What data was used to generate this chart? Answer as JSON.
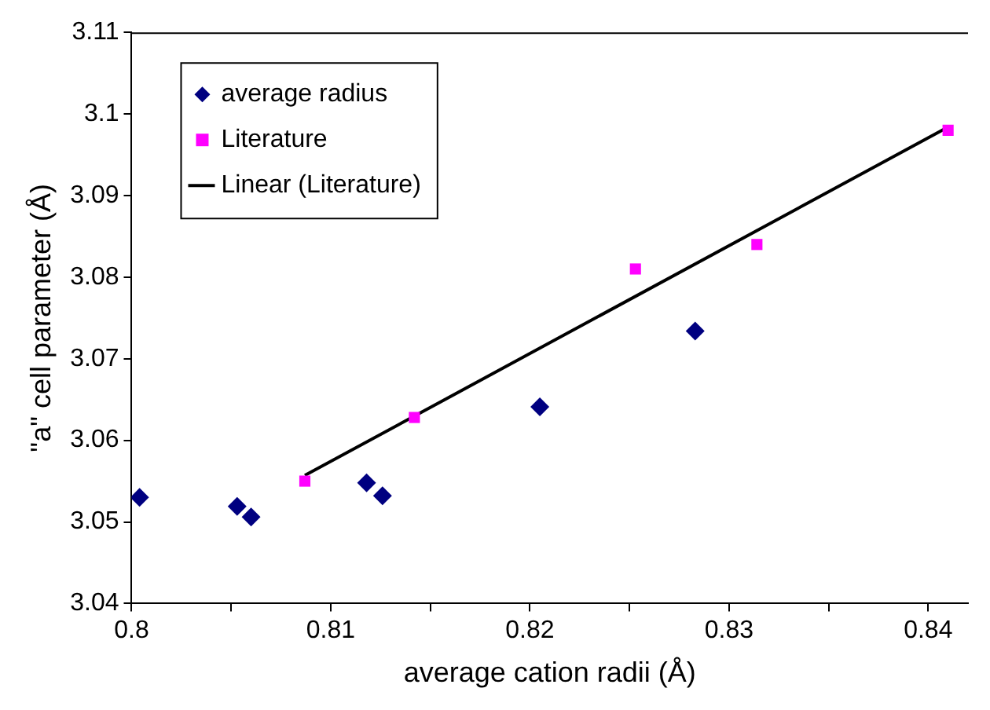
{
  "chart_data": {
    "type": "scatter",
    "xlabel": "average cation radii (Å)",
    "ylabel": "\"a\" cell parameter (Å)",
    "xlim": [
      0.8,
      0.842
    ],
    "xticks": [
      0.8,
      {
        "value": 0.805,
        "label": null
      },
      0.81,
      {
        "value": 0.815,
        "label": null
      },
      0.82,
      {
        "value": 0.825,
        "label": null
      },
      0.83,
      {
        "value": 0.835,
        "label": null
      },
      0.84
    ],
    "ylim": [
      3.04,
      3.11
    ],
    "yticks": [
      3.04,
      3.05,
      3.06,
      3.07,
      3.08,
      3.09,
      3.1,
      3.11
    ],
    "grid": false,
    "legend": "top left",
    "series": [
      {
        "name": "average radius",
        "color": "#000080",
        "marker": "diamond",
        "x": [
          0.8004,
          0.8053,
          0.806,
          0.8118,
          0.8126,
          0.8205,
          0.8283
        ],
        "values": [
          3.053,
          3.0519,
          3.0506,
          3.0548,
          3.0532,
          3.0641,
          3.0734
        ]
      },
      {
        "name": "Literature",
        "color": "#ff00ff",
        "marker": "square",
        "x": [
          0.8087,
          0.8142,
          0.8253,
          0.8314,
          0.841
        ],
        "values": [
          3.055,
          3.0628,
          3.081,
          3.084,
          3.098
        ]
      },
      {
        "name": "Linear (Literature)",
        "type": "line",
        "color": "#000000",
        "marker": "none",
        "line_style": "solid",
        "x": [
          0.8087,
          0.841
        ],
        "values": [
          3.0557,
          3.0984
        ]
      }
    ]
  }
}
